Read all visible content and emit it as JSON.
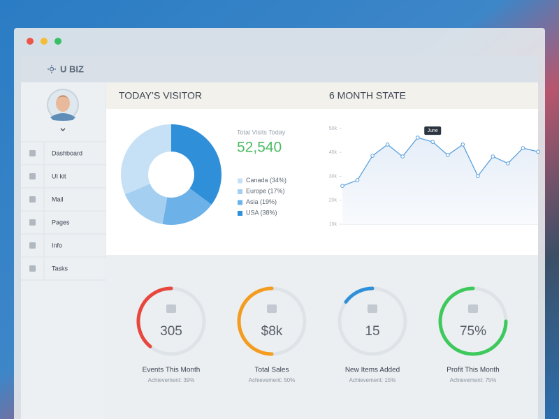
{
  "window": {
    "brand": "U BIZ"
  },
  "sidebar": {
    "menu": [
      "Dashboard",
      "UI kit",
      "Mail",
      "Pages",
      "Info",
      "Tasks"
    ]
  },
  "visitor": {
    "total_label": "Total Visits Today",
    "total": "52,540"
  },
  "chart_data": [
    {
      "type": "pie",
      "title": "TODAY’S VISITOR",
      "donut": true,
      "categories": [
        "Canada",
        "Europe",
        "Asia",
        "USA"
      ],
      "values": [
        34,
        17,
        19,
        38
      ],
      "value_labels": [
        "(34%)",
        "(17%)",
        "(19%)",
        "(38%)"
      ],
      "colors": [
        "#c6e0f5",
        "#a5cff0",
        "#6cb2e8",
        "#2f8fd8"
      ]
    },
    {
      "type": "line",
      "title": "6 MONTH STATE",
      "categories": [
        null,
        null,
        null,
        null,
        null,
        null,
        "June",
        null,
        null,
        null,
        null,
        null,
        null,
        null
      ],
      "values": [
        26000,
        28400,
        38600,
        43300,
        38300,
        46200,
        44400,
        38900,
        43300,
        30100,
        38300,
        35400,
        41800,
        40300
      ],
      "color": "#5aa0dc",
      "ylim": [
        10000,
        50000
      ],
      "yticks": [
        {
          "value": 10000,
          "label": "10k"
        },
        {
          "value": 20000,
          "label": "20k"
        },
        {
          "value": 30000,
          "label": "30k"
        },
        {
          "value": 40000,
          "label": "40k"
        },
        {
          "value": 50000,
          "label": "50k"
        }
      ]
    }
  ],
  "stats": [
    {
      "value": "305",
      "label": "Events This Month",
      "achievement": 39,
      "achievement_label": "Achievement: 39%",
      "color": "#e8473d"
    },
    {
      "value": "$8k",
      "label": "Total Sales",
      "achievement": 50,
      "achievement_label": "Achievement: 50%",
      "color": "#f39c1f"
    },
    {
      "value": "15",
      "label": "New Items Added",
      "achievement": 15,
      "achievement_label": "Achievement: 15%",
      "color": "#2f8fd8"
    },
    {
      "value": "75%",
      "label": "Profit This Month",
      "achievement": 75,
      "achievement_label": "Achievement: 75%",
      "color": "#3dc95c"
    }
  ]
}
